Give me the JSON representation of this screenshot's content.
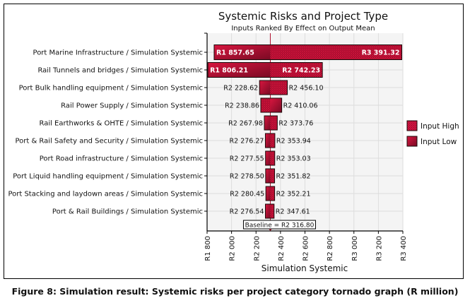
{
  "caption": "Figure 8: Simulation result: Systemic risks per project category tornado graph (R million)",
  "colors": {
    "bar_fill": "#c8103a",
    "bar_dark": "#7a0a24",
    "bar_border": "#1a0a0a",
    "baseline_line": "#b0102e",
    "grid": "#dddddd",
    "plot_bg": "#f4f4f4"
  },
  "chart_data": {
    "type": "tornado",
    "title": "Systemic Risks and Project Type",
    "subtitle": "Inputs Ranked By Effect on Output Mean",
    "xlabel": "Simulation Systemic",
    "ylabel": "",
    "xlim": [
      1800,
      3400
    ],
    "xticks": [
      1800,
      2000,
      2200,
      2400,
      2600,
      2800,
      3000,
      3200,
      3400
    ],
    "xtick_labels": [
      "R1 800",
      "R2 000",
      "R2 200",
      "R2 400",
      "R2 600",
      "R2 800",
      "R3 000",
      "R3 200",
      "R3 400"
    ],
    "grid": true,
    "baseline": 2316.8,
    "baseline_label": "Baseline = R2 316.80",
    "legend": {
      "placement": "right",
      "entries": [
        {
          "name": "Input High",
          "pattern": "dotted"
        },
        {
          "name": "Input Low",
          "pattern": "solid"
        }
      ]
    },
    "categories": [
      "Port Marine Infrastructure / Simulation Systemic",
      "Rail Tunnels and bridges / Simulation Systemic",
      "Port Bulk handling equipment / Simulation Systemic",
      "Rail Power Supply / Simulation Systemic",
      "Rail Earthworks & OHTE / Simulation Systemic",
      "Port & Rail Safety and Security / Simulation Systemic",
      "Port Road infrastructure / Simulation Systemic",
      "Port Liquid handling equipment / Simulation Systemic",
      "Port Stacking and laydown areas / Simulation Systemic",
      "Port & Rail Buildings / Simulation Systemic"
    ],
    "series": [
      {
        "name": "Low end",
        "values": [
          1857.65,
          1806.21,
          2228.62,
          2238.86,
          2267.98,
          2276.27,
          2277.55,
          2278.5,
          2280.45,
          2276.54
        ],
        "labels": [
          "R1 857.65",
          "R1 806.21",
          "R2 228.62",
          "R2 238.86",
          "R2 267.98",
          "R2 276.27",
          "R2 277.55",
          "R2 278.50",
          "R2 280.45",
          "R2 276.54"
        ],
        "low_from": [
          "Input Low",
          "Input Low",
          "Input Low",
          "Input High",
          "Input Low",
          "Input Low",
          "Input Low",
          "Input Low",
          "Input Low",
          "Input Low"
        ]
      },
      {
        "name": "High end",
        "values": [
          3391.32,
          2742.23,
          2456.1,
          2410.06,
          2373.76,
          2353.94,
          2353.03,
          2351.82,
          2352.21,
          2347.61
        ],
        "labels": [
          "R3 391.32",
          "R2 742.23",
          "R2 456.10",
          "R2 410.06",
          "R2 373.76",
          "R2 353.94",
          "R2 353.03",
          "R2 351.82",
          "R2 352.21",
          "R2 347.61"
        ],
        "high_from": [
          "Input High",
          "Input High",
          "Input High",
          "Input Low",
          "Input High",
          "Input High",
          "Input High",
          "Input High",
          "Input High",
          "Input High"
        ]
      }
    ],
    "labels_inside": [
      true,
      true,
      false,
      false,
      false,
      false,
      false,
      false,
      false,
      false
    ]
  }
}
